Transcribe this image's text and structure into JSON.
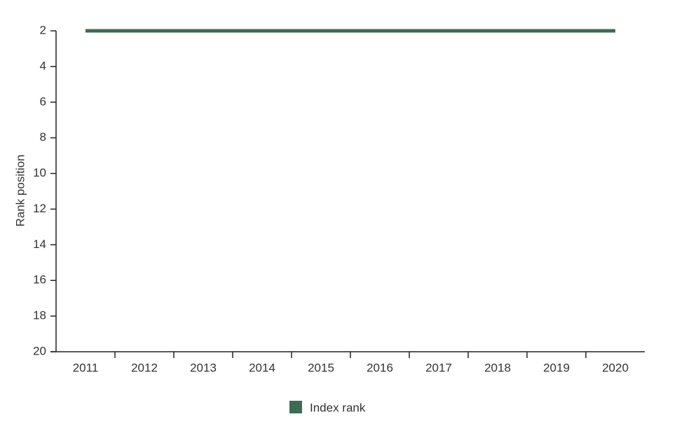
{
  "chart_data": {
    "type": "line",
    "y_label": "Rank position",
    "categories": [
      "2011",
      "2012",
      "2013",
      "2014",
      "2015",
      "2016",
      "2017",
      "2018",
      "2019",
      "2020"
    ],
    "series": [
      {
        "name": "Index rank",
        "color": "#3d6b53",
        "values": [
          2,
          2,
          2,
          2,
          2,
          2,
          2,
          2,
          2,
          2
        ]
      }
    ],
    "ylim": [
      2,
      20
    ],
    "y_inverted": true,
    "yticks": [
      2,
      4,
      6,
      8,
      10,
      12,
      14,
      16,
      18,
      20
    ]
  }
}
